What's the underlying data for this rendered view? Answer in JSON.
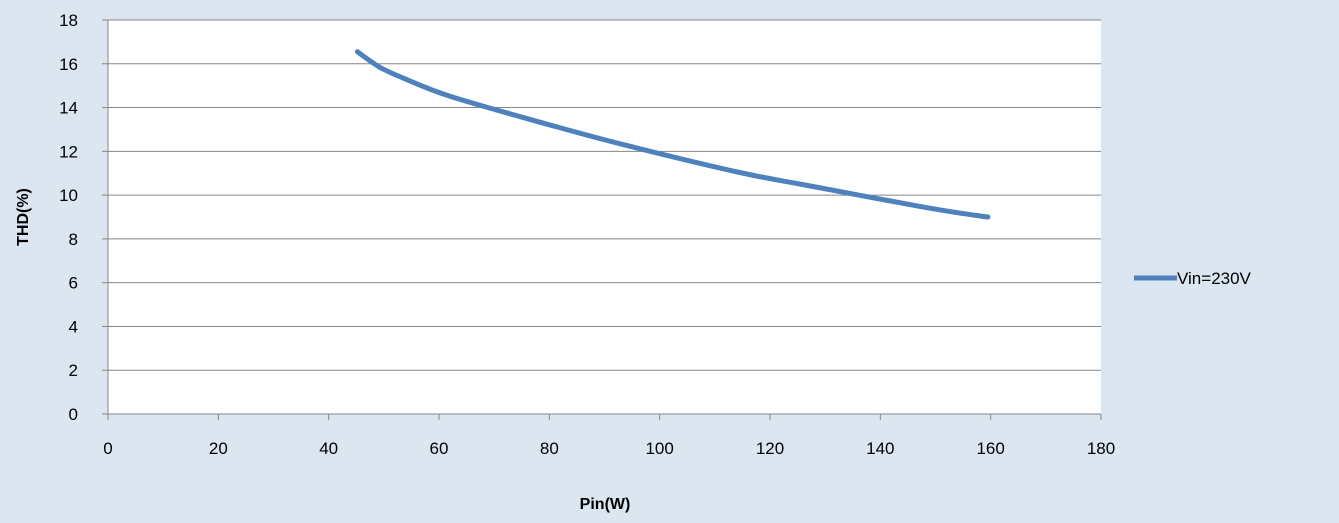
{
  "chart_data": {
    "type": "line",
    "title": "",
    "xlabel": "Pin(W)",
    "ylabel": "THD(%)",
    "xlim": [
      0,
      180
    ],
    "ylim": [
      0,
      18
    ],
    "x_ticks": [
      0,
      20,
      40,
      60,
      80,
      100,
      120,
      140,
      160,
      180
    ],
    "y_ticks": [
      0,
      2,
      4,
      6,
      8,
      10,
      12,
      14,
      16,
      18
    ],
    "grid": {
      "horizontal": true,
      "vertical": false
    },
    "legend_position": "right",
    "colors": {
      "series": "#4f81bd",
      "background": "#dce6f1",
      "plot_area": "#ffffff",
      "gridline": "#868686"
    },
    "series": [
      {
        "name": "Vin=230V",
        "x": [
          45.2,
          49.2,
          53.5,
          62.2,
          81.6,
          94.3,
          114.2,
          126.6,
          146.8,
          155.2,
          159.5
        ],
        "y": [
          16.55,
          15.85,
          15.35,
          14.5,
          13.1,
          12.25,
          11.05,
          10.45,
          9.5,
          9.15,
          9.0
        ]
      }
    ]
  }
}
